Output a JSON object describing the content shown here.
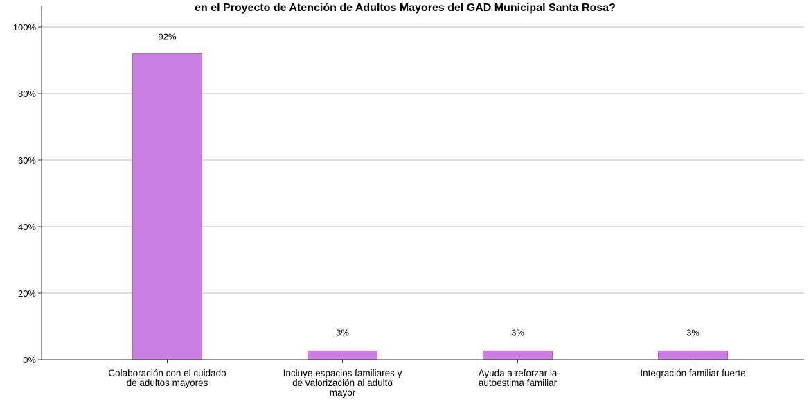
{
  "chart_data": {
    "type": "bar",
    "title": "en el Proyecto de Atención de Adultos Mayores del GAD Municipal Santa Rosa?",
    "categories": [
      [
        "Colaboración con el cuidado",
        "de adultos mayores"
      ],
      [
        "Incluye espacios familiares y",
        "de valorización al adulto",
        "mayor"
      ],
      [
        "Ayuda a reforzar la",
        "autoestima familiar"
      ],
      [
        "Integración familiar fuerte"
      ]
    ],
    "values": [
      92,
      2.63,
      2.63,
      2.63
    ],
    "data_labels": [
      "92%",
      "3%",
      "3%",
      "3%"
    ],
    "ylim": [
      0,
      100
    ],
    "yticks": [
      0,
      20,
      40,
      60,
      80,
      100
    ],
    "ytick_labels": [
      "0%",
      "20%",
      "40%",
      "60%",
      "80%",
      "100%"
    ],
    "xlabel": "",
    "ylabel": "",
    "grid": true,
    "colors": {
      "bar_fill": "#c97de3",
      "bar_stroke": "#b462d1",
      "grid": "#bdbdbd",
      "axis": "#333333"
    }
  }
}
